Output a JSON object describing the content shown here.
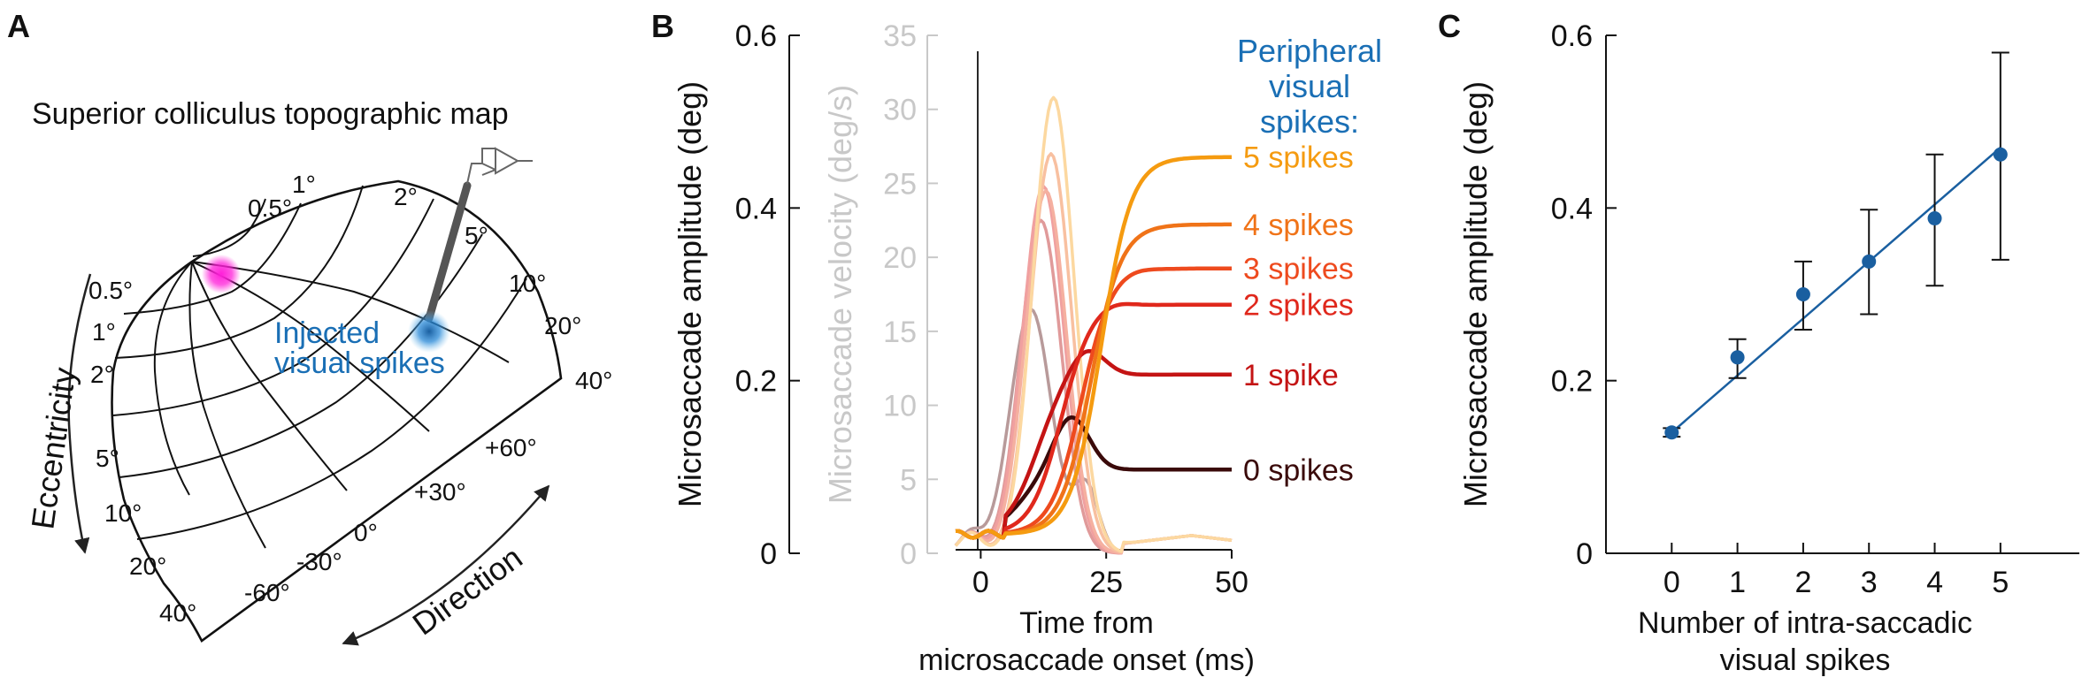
{
  "panel_labels": {
    "a": "A",
    "b": "B",
    "c": "C"
  },
  "panel_a": {
    "title": "Superior colliculus topographic map",
    "eccentricity_labels": [
      "0.5°",
      "1°",
      "2°",
      "5°",
      "10°",
      "20°",
      "40°"
    ],
    "top_labels": [
      "0.5°",
      "1°",
      "2°",
      "5°",
      "10°",
      "20°",
      "40°"
    ],
    "direction_labels": [
      "-60°",
      "-30°",
      "0°",
      "+30°",
      "+60°"
    ],
    "injection_label_line1": "Injected",
    "injection_label_line2": "visual spikes",
    "eccentricity_axis_label": "Eccentricity",
    "direction_axis_label": "Direction",
    "colors": {
      "pink_spot": "#ff1fd9",
      "blue_spot": "#1f78b8",
      "grid": "#111111",
      "electrode": "#555555"
    }
  },
  "chart_data": [
    {
      "type": "line",
      "panel": "B",
      "left_axis": {
        "label": "Microsaccade amplitude (deg)",
        "ticks": [
          "0",
          "0.2",
          "0.4",
          "0.6"
        ],
        "ylim": [
          0,
          0.6
        ]
      },
      "right_axis": {
        "label": "Microsaccade velocity (deg/s)",
        "ticks": [
          "0",
          "5",
          "10",
          "15",
          "20",
          "25",
          "30",
          "35"
        ],
        "ylim": [
          0,
          35
        ],
        "color": "#c8c8c8"
      },
      "x_axis": {
        "label_line1": "Time from",
        "label_line2": "microsaccade onset (ms)",
        "ticks": [
          "0",
          "25",
          "50"
        ],
        "xlim": [
          -5,
          50
        ]
      },
      "legend_title": [
        "Peripheral",
        "visual",
        "spikes:"
      ],
      "legend_color": "#1a6fb5",
      "amplitude_series": [
        {
          "name": "0 spikes",
          "color": "#3a0a0a",
          "final": 0.097,
          "peak": 0.16,
          "peak_t": 18
        },
        {
          "name": "1 spike",
          "color": "#c41414",
          "final": 0.207,
          "peak": 0.24,
          "peak_t": 21
        },
        {
          "name": "2 spikes",
          "color": "#e0281c",
          "final": 0.288,
          "peak": 0.294,
          "peak_t": 26
        },
        {
          "name": "3 spikes",
          "color": "#ee4a1e",
          "final": 0.33,
          "peak": 0.333,
          "peak_t": 30
        },
        {
          "name": "4 spikes",
          "color": "#f07318",
          "final": 0.381,
          "peak": 0.381,
          "peak_t": 32
        },
        {
          "name": "5 spikes",
          "color": "#f59b10",
          "final": 0.459,
          "peak": 0.459,
          "peak_t": 34
        }
      ],
      "velocity_series": [
        {
          "name": "0 spikes",
          "color": "#b89a9a",
          "peak": 16.5,
          "peak_t": 10
        },
        {
          "name": "1 spike",
          "color": "#e09a9a",
          "peak": 22.5,
          "peak_t": 12
        },
        {
          "name": "2 spikes",
          "color": "#f0a0a0",
          "peak": 24.8,
          "peak_t": 12.5
        },
        {
          "name": "3 spikes",
          "color": "#f5b0a0",
          "peak": 24.5,
          "peak_t": 13
        },
        {
          "name": "4 spikes",
          "color": "#f8c0a0",
          "peak": 27,
          "peak_t": 14
        },
        {
          "name": "5 spikes",
          "color": "#fcd8a0",
          "peak": 30.8,
          "peak_t": 14.5
        }
      ]
    },
    {
      "type": "scatter",
      "panel": "C",
      "xlabel_line1": "Number of intra-saccadic",
      "xlabel_line2": "visual spikes",
      "ylabel": "Microsaccade amplitude (deg)",
      "x_ticks": [
        "0",
        "1",
        "2",
        "3",
        "4",
        "5"
      ],
      "y_ticks": [
        "0",
        "0.2",
        "0.4",
        "0.6"
      ],
      "xlim": [
        -1,
        6.2
      ],
      "ylim": [
        0,
        0.6
      ],
      "x": [
        0,
        1,
        2,
        3,
        4,
        5
      ],
      "y": [
        0.14,
        0.227,
        0.3,
        0.338,
        0.388,
        0.462
      ],
      "err_low": [
        0.135,
        0.203,
        0.259,
        0.277,
        0.31,
        0.34
      ],
      "err_high": [
        0.145,
        0.248,
        0.338,
        0.398,
        0.462,
        0.58
      ],
      "fit_line": {
        "x": [
          0,
          5
        ],
        "y": [
          0.14,
          0.47
        ]
      },
      "color": "#1a5fa0"
    }
  ]
}
